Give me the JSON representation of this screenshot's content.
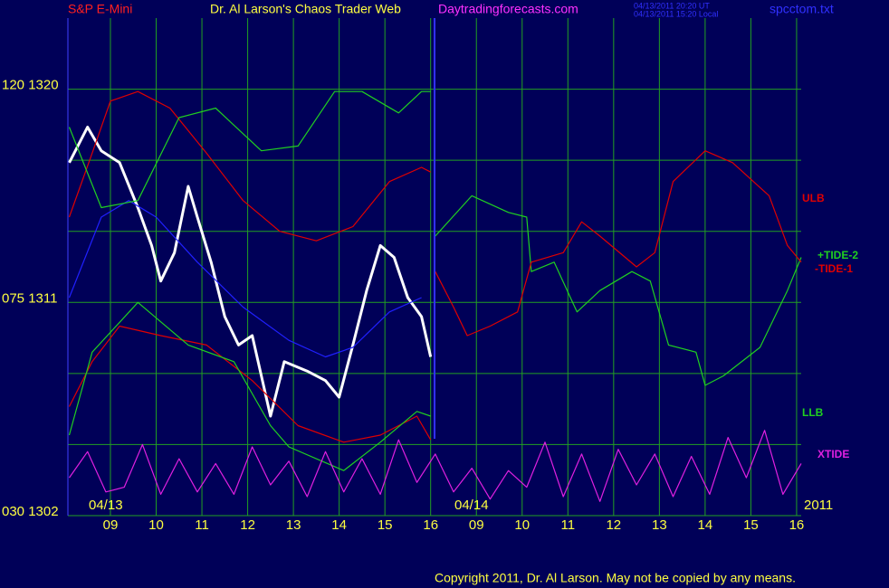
{
  "chart_data": {
    "type": "line",
    "instrument": "S&P E-Mini",
    "title": "Dr. Al Larson's Chaos Trader Web",
    "site": "Daytradingforecasts.com",
    "timestamps": [
      "04/13/2011 20:20 UT",
      "04/13/2011 15:20 Local"
    ],
    "file": "spcctom.txt",
    "dates": [
      "04/13",
      "04/14"
    ],
    "year": "2011",
    "copyright": "Copyright 2011, Dr. Al Larson. May not be copied by any means.",
    "annotations": [
      "ULB",
      "+TIDE-2",
      "-TIDE-1",
      "LLB",
      "XTIDE"
    ],
    "xlim": [
      -0.93,
      15.1
    ],
    "xticks": [
      {
        "value": 0,
        "label": "09"
      },
      {
        "value": 1,
        "label": "10"
      },
      {
        "value": 2,
        "label": "11"
      },
      {
        "value": 3,
        "label": "12"
      },
      {
        "value": 4,
        "label": "13"
      },
      {
        "value": 5,
        "label": "14"
      },
      {
        "value": 6,
        "label": "15"
      },
      {
        "value": 7,
        "label": "16"
      },
      {
        "value": 8,
        "label": "09"
      },
      {
        "value": 9,
        "label": "10"
      },
      {
        "value": 10,
        "label": "11"
      },
      {
        "value": 11,
        "label": "12"
      },
      {
        "value": 12,
        "label": "13"
      },
      {
        "value": 13,
        "label": "14"
      },
      {
        "value": 14,
        "label": "15"
      },
      {
        "value": 15,
        "label": "16"
      }
    ],
    "ylim": [
      1302,
      1323
    ],
    "yticks": [
      {
        "value": 1302,
        "label": "030 1302"
      },
      {
        "value": 1311,
        "label": "075 1311"
      },
      {
        "value": 1320,
        "label": "120 1320"
      }
    ],
    "ygrid": [
      1305,
      1308,
      1314,
      1317
    ],
    "grid": true,
    "grid_color": "#22a022",
    "series": [
      {
        "color": "#ffffff",
        "x": [
          -0.9,
          -0.5,
          -0.2,
          0.2,
          0.6,
          0.9,
          1.1,
          1.4,
          1.7,
          1.9,
          2.2,
          2.5,
          2.8,
          3.1,
          3.5,
          3.8,
          4.3,
          4.7,
          5.0,
          5.3,
          5.6,
          5.9,
          6.2,
          6.5,
          6.8,
          7.0
        ],
        "values": [
          1316.9,
          1318.4,
          1317.4,
          1316.9,
          1315.0,
          1313.4,
          1311.9,
          1313.1,
          1315.9,
          1314.6,
          1312.7,
          1310.4,
          1309.2,
          1309.6,
          1306.2,
          1308.5,
          1308.1,
          1307.7,
          1307.0,
          1309.2,
          1311.5,
          1313.4,
          1312.9,
          1311.2,
          1310.4,
          1308.7
        ]
      },
      {
        "color": "#2020ff",
        "x": [
          -0.9,
          -0.2,
          0.4,
          1.0,
          1.9,
          2.9,
          3.9,
          4.7,
          5.3,
          6.1,
          6.8
        ],
        "values": [
          1311.2,
          1314.6,
          1315.3,
          1314.6,
          1312.7,
          1310.8,
          1309.4,
          1308.7,
          1309.1,
          1310.6,
          1311.2
        ]
      },
      {
        "color": "#e00000",
        "x": [
          -0.9,
          -0.4,
          0.0,
          0.6,
          1.3,
          2.1,
          2.9,
          3.7,
          4.5,
          5.3,
          6.1,
          6.8,
          7.0
        ],
        "values": [
          1314.6,
          1317.3,
          1319.5,
          1319.9,
          1319.2,
          1317.3,
          1315.3,
          1314.0,
          1313.6,
          1314.2,
          1316.1,
          1316.7,
          1316.5
        ]
      },
      {
        "color": "#e00000",
        "x": [
          -0.9,
          -0.4,
          0.2,
          1.1,
          2.1,
          3.1,
          4.1,
          5.1,
          5.9,
          6.7,
          7.0
        ],
        "values": [
          1306.6,
          1308.5,
          1310.0,
          1309.6,
          1309.2,
          1307.7,
          1305.8,
          1305.1,
          1305.4,
          1306.2,
          1305.2
        ]
      },
      {
        "color": "#20d020",
        "x": [
          -0.9,
          -0.2,
          0.6,
          1.5,
          2.3,
          3.3,
          4.1,
          4.9,
          5.5,
          6.3,
          6.8,
          7.0
        ],
        "values": [
          1318.4,
          1315.0,
          1315.3,
          1318.8,
          1319.2,
          1317.4,
          1317.6,
          1319.9,
          1319.9,
          1319.0,
          1319.9,
          1319.9
        ]
      },
      {
        "color": "#20d020",
        "x": [
          -0.9,
          -0.4,
          0.6,
          1.7,
          2.7,
          3.5,
          3.9,
          5.1,
          5.9,
          6.7,
          7.0
        ],
        "values": [
          1305.4,
          1308.9,
          1311.0,
          1309.2,
          1308.5,
          1305.8,
          1304.9,
          1303.9,
          1305.1,
          1306.4,
          1306.2
        ]
      },
      {
        "name": "+TIDE-2",
        "color": "#20d020",
        "x": [
          7.1,
          7.9,
          8.7,
          9.1,
          9.2,
          9.7,
          10.2,
          10.7,
          11.4,
          11.8,
          12.2,
          12.8,
          13.0,
          13.4,
          14.2,
          14.8,
          15.1
        ],
        "values": [
          1313.8,
          1315.5,
          1314.8,
          1314.6,
          1312.3,
          1312.7,
          1310.6,
          1311.5,
          1312.3,
          1311.9,
          1309.2,
          1308.9,
          1307.5,
          1307.9,
          1309.1,
          1311.5,
          1312.9
        ]
      },
      {
        "name": "-TIDE-1",
        "color": "#e00000",
        "x": [
          7.1,
          7.5,
          7.8,
          8.3,
          8.9,
          9.2,
          9.9,
          10.3,
          10.7,
          11.5,
          11.9,
          12.3,
          13.0,
          13.6,
          14.4,
          14.8,
          15.1
        ],
        "values": [
          1312.3,
          1310.8,
          1309.6,
          1310.0,
          1310.6,
          1312.7,
          1313.1,
          1314.4,
          1313.8,
          1312.5,
          1313.1,
          1316.1,
          1317.4,
          1316.9,
          1315.5,
          1313.4,
          1312.7
        ]
      },
      {
        "name": "XTIDE",
        "color": "#e020e0",
        "x": [
          -0.9,
          -0.5,
          -0.1,
          0.3,
          0.7,
          1.1,
          1.5,
          1.9,
          2.3,
          2.7,
          3.1,
          3.5,
          3.9,
          4.3,
          4.7,
          5.1,
          5.5,
          5.9,
          6.3,
          6.7,
          7.1,
          7.5,
          7.9,
          8.3,
          8.7,
          9.1,
          9.5,
          9.9,
          10.3,
          10.7,
          11.1,
          11.5,
          11.9,
          12.3,
          12.7,
          13.1,
          13.5,
          13.9,
          14.3,
          14.7,
          15.1
        ],
        "values": [
          1303.6,
          1304.7,
          1303.0,
          1303.2,
          1305.0,
          1302.9,
          1304.4,
          1303.0,
          1304.2,
          1302.9,
          1304.9,
          1303.3,
          1304.3,
          1302.8,
          1304.7,
          1303.0,
          1304.4,
          1302.9,
          1305.2,
          1303.4,
          1304.6,
          1303.0,
          1304.0,
          1302.7,
          1303.9,
          1303.2,
          1305.1,
          1302.8,
          1304.6,
          1302.6,
          1304.8,
          1303.3,
          1304.6,
          1302.8,
          1304.5,
          1302.9,
          1305.3,
          1303.6,
          1305.6,
          1302.9,
          1304.2
        ]
      }
    ]
  }
}
